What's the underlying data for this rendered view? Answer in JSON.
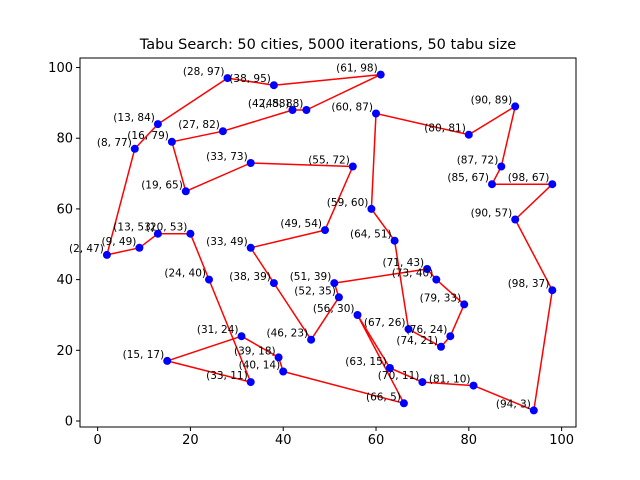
{
  "chart_data": {
    "type": "scatter",
    "title": "Tabu Search: 50 cities, 5000 iterations, 50 tabu size",
    "xlabel": "",
    "ylabel": "",
    "xlim": [
      -3.8,
      103.1
    ],
    "ylim": [
      -1.7,
      102.7
    ],
    "xticks": [
      0,
      20,
      40,
      60,
      80,
      100
    ],
    "yticks": [
      0,
      20,
      40,
      60,
      80,
      100
    ],
    "grid": false,
    "colors": {
      "point": "#0000ff",
      "route": "#ff0000",
      "axes": "#000000"
    },
    "series": [
      {
        "kind": "route",
        "points": [
          [
            2,
            47
          ],
          [
            8,
            77
          ],
          [
            13,
            84
          ],
          [
            28,
            97
          ],
          [
            38,
            95
          ],
          [
            61,
            98
          ],
          [
            45,
            88
          ],
          [
            42,
            88
          ],
          [
            27,
            82
          ],
          [
            16,
            79
          ],
          [
            19,
            65
          ],
          [
            33,
            73
          ],
          [
            55,
            72
          ],
          [
            49,
            54
          ],
          [
            33,
            49
          ],
          [
            38,
            39
          ],
          [
            46,
            23
          ],
          [
            52,
            35
          ],
          [
            51,
            39
          ],
          [
            71,
            43
          ],
          [
            73,
            40
          ],
          [
            79,
            33
          ],
          [
            76,
            24
          ],
          [
            74,
            21
          ],
          [
            67,
            26
          ],
          [
            64,
            51
          ],
          [
            59,
            60
          ],
          [
            60,
            87
          ],
          [
            80,
            81
          ],
          [
            90,
            89
          ],
          [
            87,
            72
          ],
          [
            85,
            67
          ],
          [
            98,
            67
          ],
          [
            90,
            57
          ],
          [
            98,
            37
          ],
          [
            94,
            3
          ],
          [
            81,
            10
          ],
          [
            70,
            11
          ],
          [
            63,
            15
          ],
          [
            56,
            30
          ],
          [
            66,
            5
          ],
          [
            40,
            14
          ],
          [
            39,
            18
          ],
          [
            31,
            24
          ],
          [
            15,
            17
          ],
          [
            33,
            11
          ],
          [
            24,
            40
          ],
          [
            20,
            53
          ],
          [
            13,
            53
          ],
          [
            9,
            49
          ],
          [
            2,
            47
          ]
        ]
      }
    ],
    "cities": [
      {
        "x": 28,
        "y": 97,
        "label": "(28, 97)"
      },
      {
        "x": 38,
        "y": 95,
        "label": "(38, 95)"
      },
      {
        "x": 61,
        "y": 98,
        "label": "(61, 98)"
      },
      {
        "x": 42,
        "y": 88,
        "label": "(42, 88)"
      },
      {
        "x": 45,
        "y": 88,
        "label": "(45, 88)"
      },
      {
        "x": 60,
        "y": 87,
        "label": "(60, 87)"
      },
      {
        "x": 90,
        "y": 89,
        "label": "(90, 89)"
      },
      {
        "x": 13,
        "y": 84,
        "label": "(13, 84)"
      },
      {
        "x": 27,
        "y": 82,
        "label": "(27, 82)"
      },
      {
        "x": 80,
        "y": 81,
        "label": "(80, 81)"
      },
      {
        "x": 16,
        "y": 79,
        "label": "(16, 79)"
      },
      {
        "x": 8,
        "y": 77,
        "label": "(8, 77)"
      },
      {
        "x": 33,
        "y": 73,
        "label": "(33, 73)"
      },
      {
        "x": 55,
        "y": 72,
        "label": "(55, 72)"
      },
      {
        "x": 87,
        "y": 72,
        "label": "(87, 72)"
      },
      {
        "x": 85,
        "y": 67,
        "label": "(85, 67)"
      },
      {
        "x": 98,
        "y": 67,
        "label": "(98, 67)"
      },
      {
        "x": 19,
        "y": 65,
        "label": "(19, 65)"
      },
      {
        "x": 59,
        "y": 60,
        "label": "(59, 60)"
      },
      {
        "x": 90,
        "y": 57,
        "label": "(90, 57)"
      },
      {
        "x": 49,
        "y": 54,
        "label": "(49, 54)"
      },
      {
        "x": 13,
        "y": 53,
        "label": "(13, 53)"
      },
      {
        "x": 20,
        "y": 53,
        "label": "(20, 53)"
      },
      {
        "x": 64,
        "y": 51,
        "label": "(64, 51)"
      },
      {
        "x": 33,
        "y": 49,
        "label": "(33, 49)"
      },
      {
        "x": 9,
        "y": 49,
        "label": "(9, 49)"
      },
      {
        "x": 2,
        "y": 47,
        "label": "(2, 47)"
      },
      {
        "x": 71,
        "y": 43,
        "label": "(71, 43)"
      },
      {
        "x": 73,
        "y": 40,
        "label": "(73, 40)"
      },
      {
        "x": 24,
        "y": 40,
        "label": "(24, 40)"
      },
      {
        "x": 38,
        "y": 39,
        "label": "(38, 39)"
      },
      {
        "x": 51,
        "y": 39,
        "label": "(51, 39)"
      },
      {
        "x": 98,
        "y": 37,
        "label": "(98, 37)"
      },
      {
        "x": 52,
        "y": 35,
        "label": "(52, 35)"
      },
      {
        "x": 79,
        "y": 33,
        "label": "(79, 33)"
      },
      {
        "x": 56,
        "y": 30,
        "label": "(56, 30)"
      },
      {
        "x": 67,
        "y": 26,
        "label": "(67, 26)"
      },
      {
        "x": 31,
        "y": 24,
        "label": "(31, 24)"
      },
      {
        "x": 76,
        "y": 24,
        "label": "(76, 24)"
      },
      {
        "x": 46,
        "y": 23,
        "label": "(46, 23)"
      },
      {
        "x": 74,
        "y": 21,
        "label": "(74, 21)"
      },
      {
        "x": 39,
        "y": 18,
        "label": "(39, 18)"
      },
      {
        "x": 15,
        "y": 17,
        "label": "(15, 17)"
      },
      {
        "x": 63,
        "y": 15,
        "label": "(63, 15)"
      },
      {
        "x": 40,
        "y": 14,
        "label": "(40, 14)"
      },
      {
        "x": 33,
        "y": 11,
        "label": "(33, 11)"
      },
      {
        "x": 70,
        "y": 11,
        "label": "(70, 11)"
      },
      {
        "x": 81,
        "y": 10,
        "label": "(81, 10)"
      },
      {
        "x": 66,
        "y": 5,
        "label": "(66, 5)"
      },
      {
        "x": 94,
        "y": 3,
        "label": "(94, 3)"
      }
    ]
  }
}
